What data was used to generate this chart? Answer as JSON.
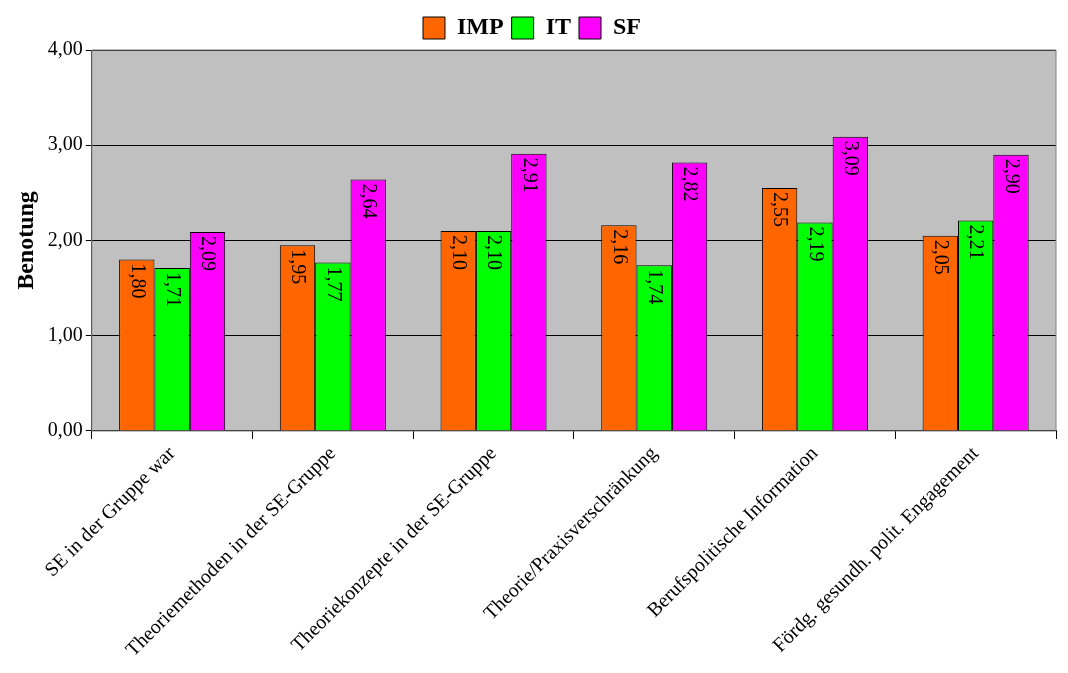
{
  "chart_data": {
    "type": "bar",
    "ylabel": "Benotung",
    "categories": [
      "SE in der Gruppe war",
      "Theoriemethoden in der SE-Gruppe",
      "Theoriekonzepte in der SE-Gruppe",
      "Theorie/Praxisverschränkung",
      "Berufspolitische Information",
      "Fördg. gesundh. polit. Engagement"
    ],
    "series": [
      {
        "name": "IMP",
        "color": "#ff6600",
        "values": [
          1.8,
          1.95,
          2.1,
          2.16,
          2.55,
          2.05
        ],
        "value_labels": [
          "1,80",
          "1,95",
          "2,10",
          "2,16",
          "2,55",
          "2,05"
        ]
      },
      {
        "name": "IT",
        "color": "#00ff00",
        "values": [
          1.71,
          1.77,
          2.1,
          1.74,
          2.19,
          2.21
        ],
        "value_labels": [
          "1,71",
          "1,77",
          "2,10",
          "1,74",
          "2,19",
          "2,21"
        ]
      },
      {
        "name": "SF",
        "color": "#ff00ff",
        "values": [
          2.09,
          2.64,
          2.91,
          2.82,
          3.09,
          2.9
        ],
        "value_labels": [
          "2,09",
          "2,64",
          "2,91",
          "2,82",
          "3,09",
          "2,90"
        ]
      }
    ],
    "ylim": [
      0,
      4
    ],
    "yticks": [
      {
        "value": 0,
        "label": "0,00"
      },
      {
        "value": 1,
        "label": "1,00"
      },
      {
        "value": 2,
        "label": "2,00"
      },
      {
        "value": 3,
        "label": "3,00"
      },
      {
        "value": 4,
        "label": "4,00"
      }
    ],
    "grid": "y",
    "legend": "top"
  }
}
